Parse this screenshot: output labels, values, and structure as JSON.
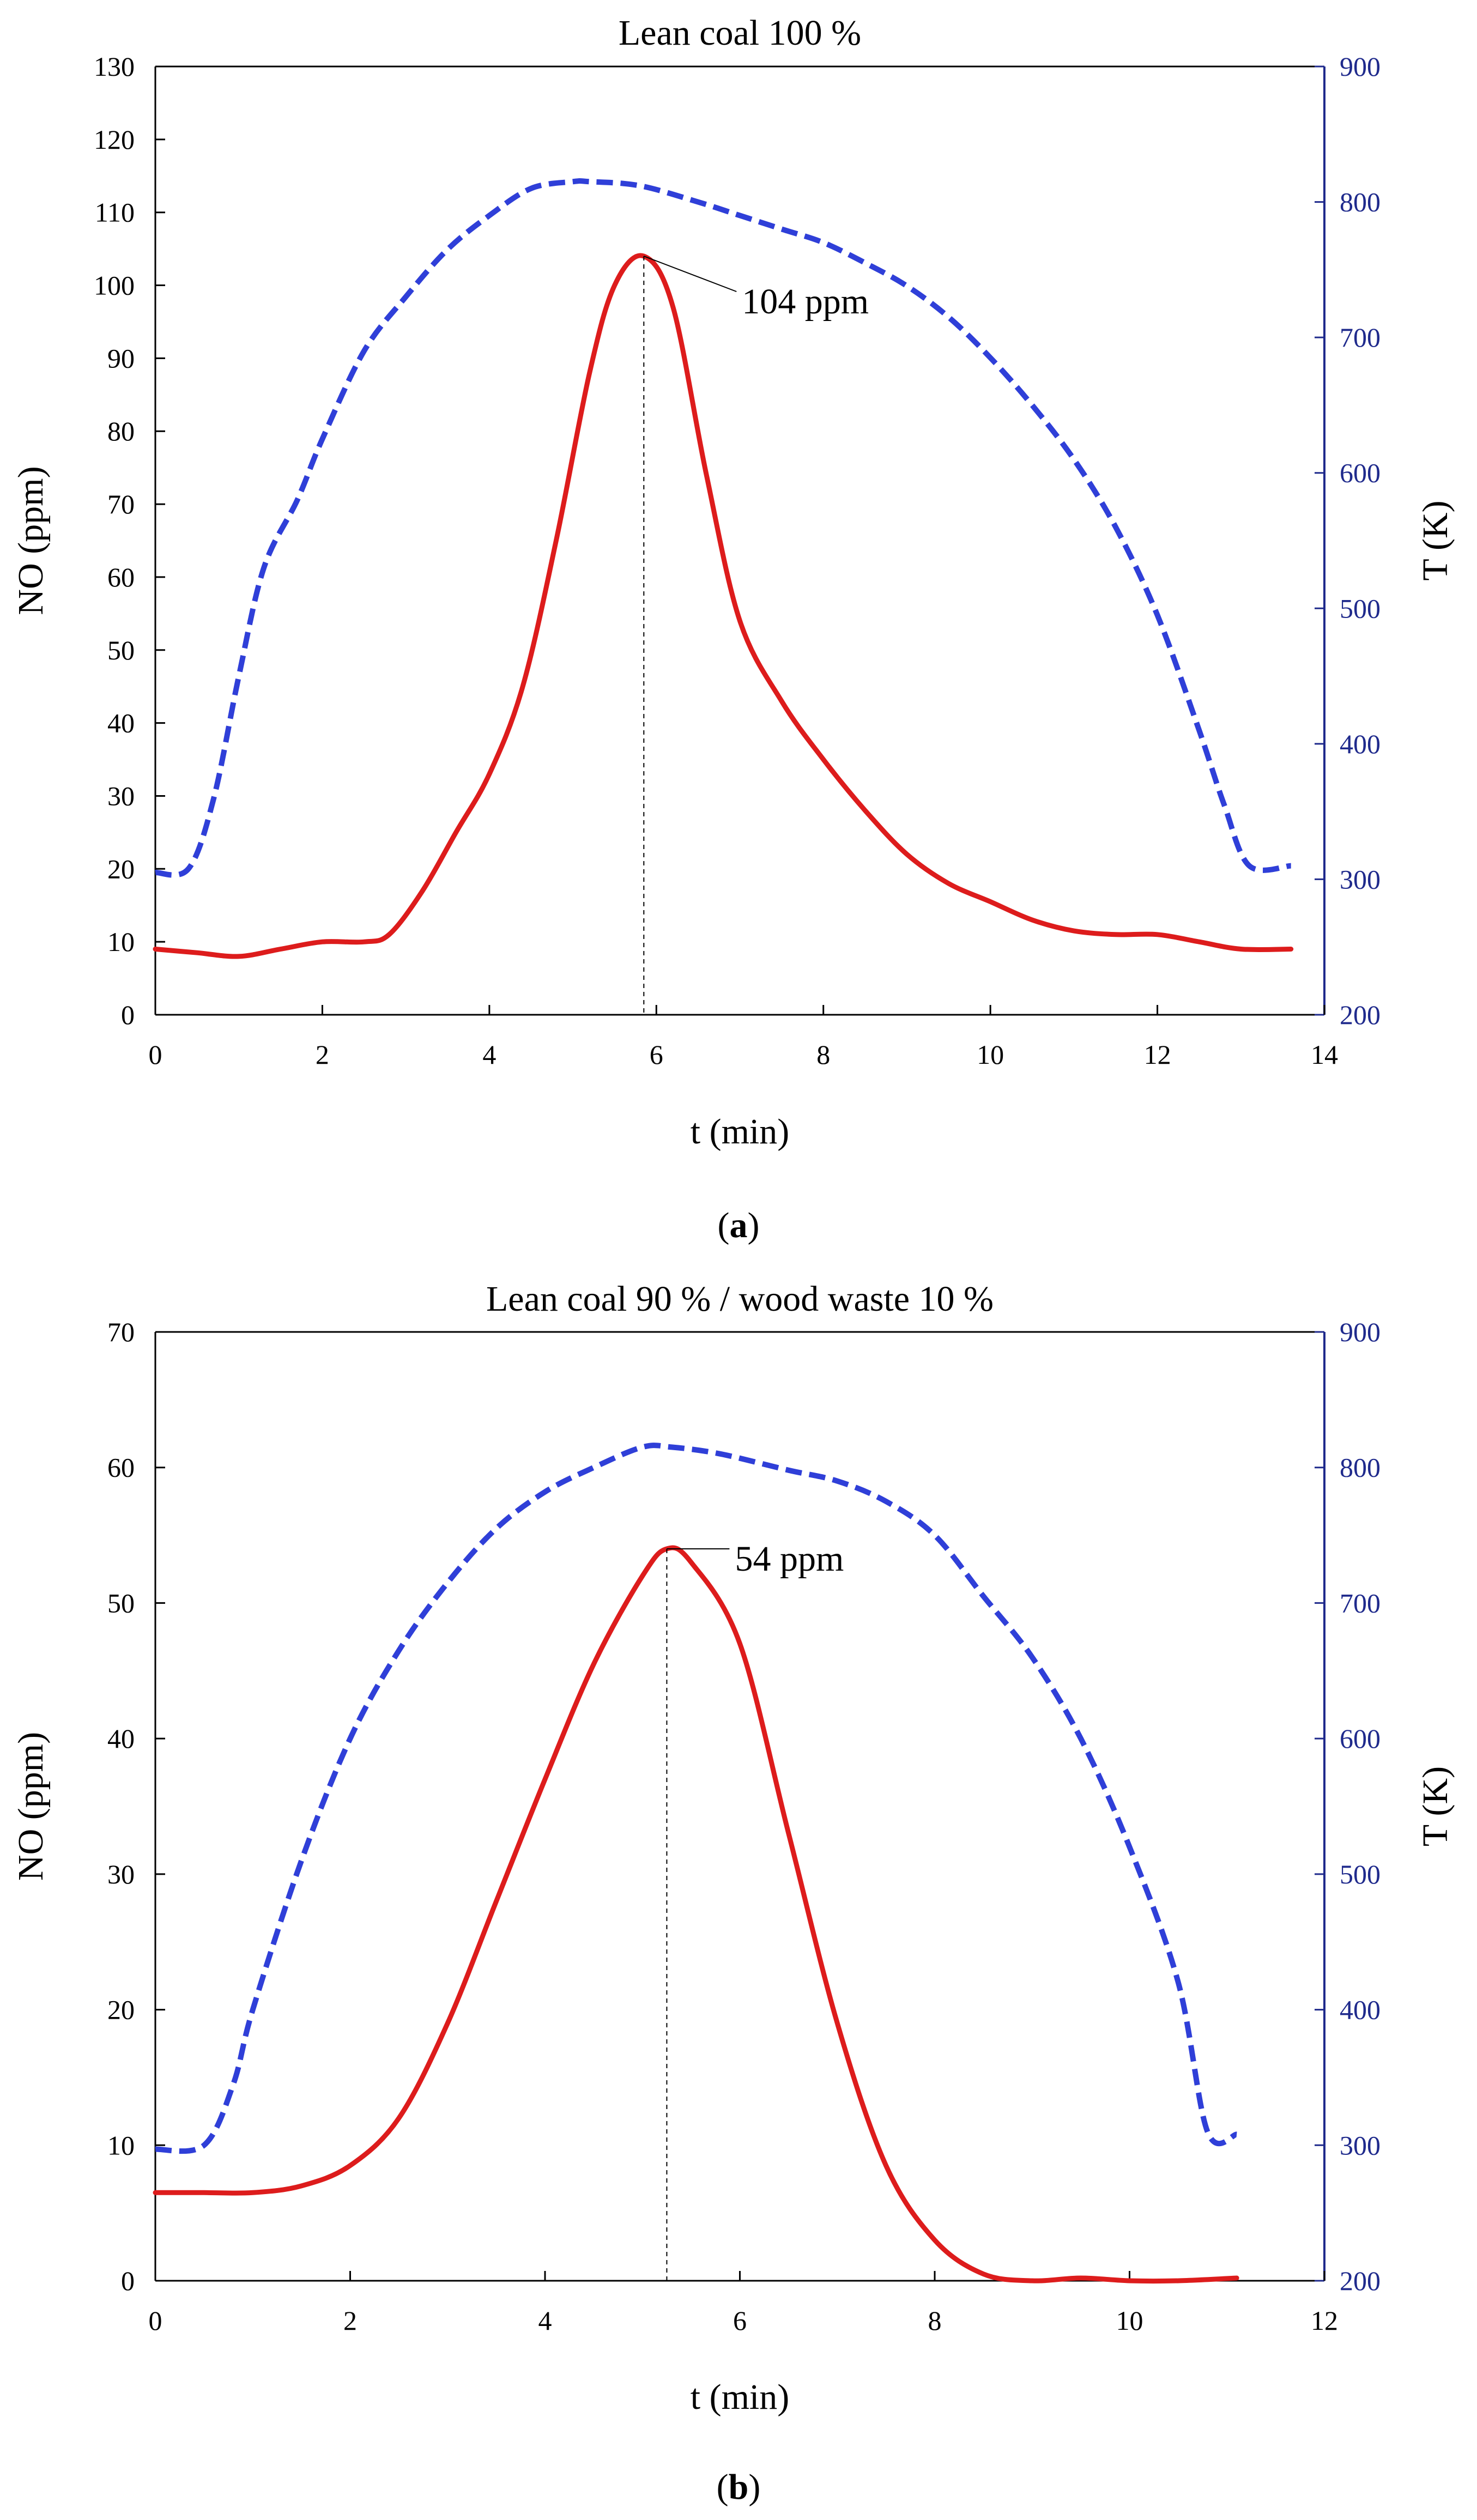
{
  "chart_data": [
    {
      "type": "line",
      "title": "Lean coal 100 %",
      "xlabel": "t (min)",
      "ylabel": "NO (ppm)",
      "y2label": "T (K)",
      "xlim": [
        0,
        14
      ],
      "ylim": [
        0,
        130
      ],
      "y2lim": [
        200,
        900
      ],
      "xticks": [
        0,
        2,
        4,
        6,
        8,
        10,
        12,
        14
      ],
      "yticks": [
        0,
        10,
        20,
        30,
        40,
        50,
        60,
        70,
        80,
        90,
        100,
        110,
        120,
        130
      ],
      "y2ticks": [
        200,
        300,
        400,
        500,
        600,
        700,
        800,
        900
      ],
      "caption_letter": "a",
      "series": [
        {
          "name": "NO",
          "axis": "left",
          "color": "#dd1c1c",
          "style": "solid",
          "x": [
            0,
            0.5,
            1.0,
            1.5,
            2.0,
            2.5,
            2.8,
            3.2,
            3.6,
            4.0,
            4.4,
            4.8,
            5.2,
            5.5,
            5.85,
            6.2,
            6.6,
            7.0,
            7.5,
            8.0,
            8.5,
            9.0,
            9.5,
            10.0,
            10.5,
            11.0,
            11.5,
            12.0,
            12.5,
            13.0,
            13.6
          ],
          "values": [
            9,
            8.5,
            8,
            9,
            10,
            10,
            11,
            17,
            25,
            33,
            45,
            65,
            88,
            100,
            104,
            97,
            74,
            54,
            43,
            35,
            28,
            22,
            18,
            15.5,
            13,
            11.5,
            11,
            11,
            10,
            9,
            9
          ]
        },
        {
          "name": "T",
          "axis": "right",
          "color": "#2f3fd8",
          "style": "dashed",
          "x": [
            0,
            0.4,
            0.7,
            1.0,
            1.3,
            1.7,
            2.0,
            2.5,
            3.0,
            3.5,
            4.0,
            4.5,
            5.0,
            5.2,
            5.8,
            6.5,
            7.0,
            7.5,
            8.0,
            8.5,
            9.0,
            9.5,
            10.0,
            10.5,
            11.0,
            11.5,
            12.0,
            12.5,
            12.8,
            13.1,
            13.6
          ],
          "values": [
            305,
            308,
            360,
            450,
            530,
            580,
            625,
            690,
            730,
            765,
            790,
            810,
            815,
            815,
            812,
            800,
            790,
            780,
            770,
            755,
            738,
            715,
            685,
            650,
            610,
            560,
            495,
            410,
            355,
            310,
            310
          ]
        }
      ],
      "annotations": [
        {
          "text": "104 ppm",
          "x": 5.85,
          "y": 104
        }
      ]
    },
    {
      "type": "line",
      "title": "Lean coal 90 % / wood waste 10 %",
      "xlabel": "t (min)",
      "ylabel": "NO (ppm)",
      "y2label": "T (K)",
      "xlim": [
        0,
        12
      ],
      "ylim": [
        0,
        70
      ],
      "y2lim": [
        200,
        900
      ],
      "xticks": [
        0,
        2,
        4,
        6,
        8,
        10,
        12
      ],
      "yticks": [
        0,
        10,
        20,
        30,
        40,
        50,
        60,
        70
      ],
      "y2ticks": [
        200,
        300,
        400,
        500,
        600,
        700,
        800,
        900
      ],
      "caption_letter": "b",
      "series": [
        {
          "name": "NO",
          "axis": "left",
          "color": "#dd1c1c",
          "style": "solid",
          "x": [
            0,
            0.5,
            1.0,
            1.5,
            2.0,
            2.5,
            3.0,
            3.5,
            4.0,
            4.5,
            5.0,
            5.25,
            5.5,
            6.0,
            6.5,
            7.0,
            7.5,
            8.0,
            8.5,
            9.0,
            9.5,
            10.0,
            10.5,
            11.1
          ],
          "values": [
            6.5,
            6.5,
            6.5,
            7,
            8.5,
            12,
            19,
            28,
            37,
            45.5,
            52,
            54,
            53,
            47,
            33,
            19,
            8.5,
            3,
            0.5,
            0,
            0.2,
            0,
            0,
            0.2
          ]
        },
        {
          "name": "T",
          "axis": "right",
          "color": "#2f3fd8",
          "style": "dashed",
          "x": [
            0,
            0.5,
            0.8,
            1.0,
            1.5,
            2.0,
            2.5,
            3.0,
            3.5,
            4.0,
            4.5,
            5.0,
            5.3,
            5.8,
            6.5,
            7.0,
            7.5,
            8.0,
            8.5,
            9.0,
            9.5,
            10.0,
            10.5,
            10.8,
            11.1
          ],
          "values": [
            297,
            300,
            345,
            400,
            510,
            600,
            665,
            715,
            755,
            782,
            800,
            815,
            815,
            810,
            798,
            790,
            775,
            750,
            705,
            660,
            600,
            520,
            420,
            310,
            308
          ]
        }
      ],
      "annotations": [
        {
          "text": "54 ppm",
          "x": 5.25,
          "y": 54
        }
      ]
    }
  ]
}
